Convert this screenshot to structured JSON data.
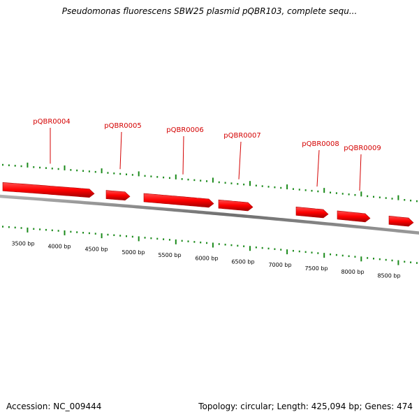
{
  "title": "Pseudomonas fluorescens SBW25 plasmid pQBR103, complete sequ...",
  "footer": {
    "accession": "Accession: NC_009444",
    "summary": "Topology: circular; Length: 425,094 bp; Genes: 474"
  },
  "colors": {
    "backbone": "#808080",
    "gene": "#ff0000",
    "gene_label": "#d40000",
    "ticks": "#1a8a1a"
  },
  "ruler": {
    "ticks": [
      {
        "bp": 3500,
        "label": "3500 bp"
      },
      {
        "bp": 4000,
        "label": "4000 bp"
      },
      {
        "bp": 4500,
        "label": "4500 bp"
      },
      {
        "bp": 5000,
        "label": "5000 bp"
      },
      {
        "bp": 5500,
        "label": "5500 bp"
      },
      {
        "bp": 6000,
        "label": "6000 bp"
      },
      {
        "bp": 6500,
        "label": "6500 bp"
      },
      {
        "bp": 7000,
        "label": "7000 bp"
      },
      {
        "bp": 7500,
        "label": "7500 bp"
      },
      {
        "bp": 8000,
        "label": "8000 bp"
      },
      {
        "bp": 8500,
        "label": "8500 bp"
      }
    ]
  },
  "genes": [
    {
      "name": "pQBR0004",
      "label": "pQBR0004",
      "strand": "+"
    },
    {
      "name": "pQBR0005",
      "label": "pQBR0005",
      "strand": "+"
    },
    {
      "name": "pQBR0006",
      "label": "pQBR0006",
      "strand": "+"
    },
    {
      "name": "pQBR0007",
      "label": "pQBR0007",
      "strand": "+"
    },
    {
      "name": "pQBR0008",
      "label": "pQBR0008",
      "strand": "+"
    },
    {
      "name": "pQBR0009",
      "label": "pQBR0009",
      "strand": "+"
    }
  ]
}
